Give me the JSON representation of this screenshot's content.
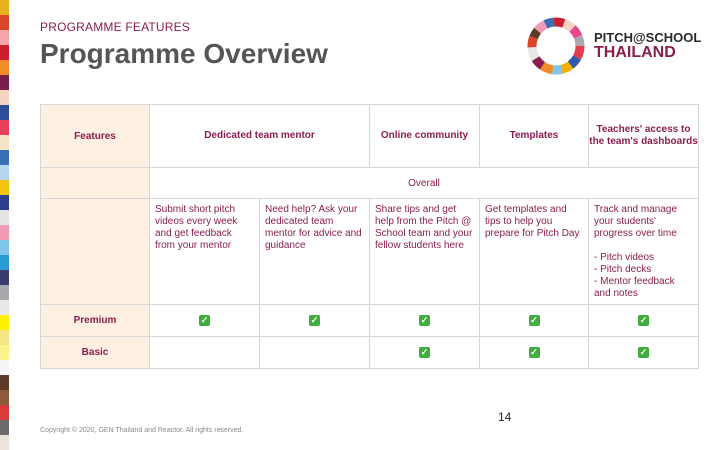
{
  "header": {
    "eyebrow": "PROGRAMME FEATURES",
    "title": "Programme Overview"
  },
  "logo": {
    "line1": "PITCH@SCHOOL",
    "line2": "THAILAND"
  },
  "table": {
    "corner_label": "Features",
    "columns": [
      "Dedicated team mentor",
      "Online community",
      "Templates",
      "Teachers' access to the team's dashboards"
    ],
    "overall_label": "Overall",
    "descriptions": {
      "mentor_a": "Submit short pitch videos every week and get feedback from your mentor",
      "mentor_b": "Need help? Ask your dedicated team mentor for advice and guidance",
      "community": "Share tips and get help from the Pitch @ School team and your fellow students here",
      "templates": "Get templates and tips to help you prepare for Pitch Day",
      "dashboards_intro": "Track and manage your students' progress over time",
      "dashboards_items": [
        "- Pitch videos",
        "- Pitch decks",
        "- Mentor feedback and notes"
      ]
    },
    "rows": [
      {
        "label": "Premium",
        "checks": [
          true,
          true,
          true,
          true,
          true
        ]
      },
      {
        "label": "Basic",
        "checks": [
          false,
          false,
          true,
          true,
          true
        ]
      }
    ],
    "check_symbol": "✓"
  },
  "footer": {
    "page_number": "14",
    "copyright": "Copyright © 2020, GEN Thailand and Reactor. All rights reserved."
  },
  "colors": {
    "accent": "#8a1e4e",
    "title_gray": "#555558",
    "label_bg": "#fdf0e3",
    "check_green": "#3fae3f"
  }
}
